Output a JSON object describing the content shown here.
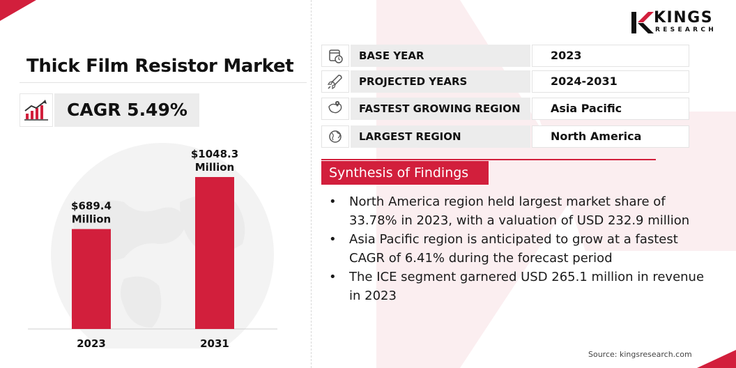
{
  "brand": {
    "logo_word": "KINGS",
    "logo_sub": "RESEARCH",
    "accent_color": "#d21f3c"
  },
  "title": "Thick Film Resistor Market",
  "cagr": {
    "label": "CAGR 5.49%",
    "icon": "growth-chart-icon"
  },
  "chart_data": {
    "type": "bar",
    "categories": [
      "2023",
      "2031"
    ],
    "values": [
      689.4,
      1048.3
    ],
    "data_labels": [
      [
        "$689.4",
        "Million"
      ],
      [
        "$1048.3",
        "Million"
      ]
    ],
    "bar_color": "#d21f3c",
    "grid": false,
    "legend": "none"
  },
  "info": [
    {
      "icon": "calendar-icon",
      "label": "BASE YEAR",
      "value": "2023"
    },
    {
      "icon": "rocket-icon",
      "label": "PROJECTED YEARS",
      "value": "2024-2031"
    },
    {
      "icon": "map-icon",
      "label": "FASTEST GROWING REGION",
      "value": "Asia Pacific"
    },
    {
      "icon": "globe-icon",
      "label": "LARGEST REGION",
      "value": "North America"
    }
  ],
  "synthesis": {
    "title": "Synthesis of Findings",
    "bullet": "•",
    "items": [
      [
        "North America region held largest market share of",
        "33.78% in 2023, with a valuation of USD 232.9 million"
      ],
      [
        "Asia Pacific region is anticipated to grow at a fastest",
        "CAGR of 6.41% during the forecast period"
      ],
      [
        "The ICE segment garnered USD 265.1 million in revenue",
        "in 2023"
      ]
    ]
  },
  "source": "Source: kingsresearch.com"
}
